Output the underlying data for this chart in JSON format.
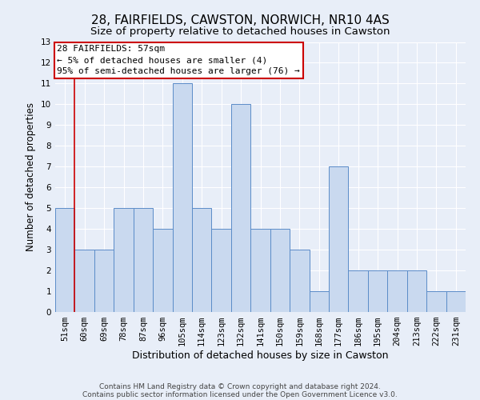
{
  "title1": "28, FAIRFIELDS, CAWSTON, NORWICH, NR10 4AS",
  "title2": "Size of property relative to detached houses in Cawston",
  "xlabel": "Distribution of detached houses by size in Cawston",
  "ylabel": "Number of detached properties",
  "categories": [
    "51sqm",
    "60sqm",
    "69sqm",
    "78sqm",
    "87sqm",
    "96sqm",
    "105sqm",
    "114sqm",
    "123sqm",
    "132sqm",
    "141sqm",
    "150sqm",
    "159sqm",
    "168sqm",
    "177sqm",
    "186sqm",
    "195sqm",
    "204sqm",
    "213sqm",
    "222sqm",
    "231sqm"
  ],
  "values": [
    5,
    3,
    3,
    5,
    5,
    4,
    11,
    5,
    4,
    10,
    4,
    4,
    3,
    1,
    7,
    2,
    2,
    2,
    2,
    1,
    1
  ],
  "bar_color": "#c9d9ef",
  "bar_edge_color": "#5b8cc8",
  "annotation_title": "28 FAIRFIELDS: 57sqm",
  "annotation_line1": "← 5% of detached houses are smaller (4)",
  "annotation_line2": "95% of semi-detached houses are larger (76) →",
  "annotation_box_color": "#ffffff",
  "annotation_box_edge": "#cc0000",
  "vline_x": 0.5,
  "vline_color": "#cc0000",
  "ylim": [
    0,
    13
  ],
  "yticks": [
    0,
    1,
    2,
    3,
    4,
    5,
    6,
    7,
    8,
    9,
    10,
    11,
    12,
    13
  ],
  "footer1": "Contains HM Land Registry data © Crown copyright and database right 2024.",
  "footer2": "Contains public sector information licensed under the Open Government Licence v3.0.",
  "bg_color": "#e8eef8",
  "plot_bg_color": "#e8eef8",
  "grid_color": "#ffffff",
  "title1_fontsize": 11,
  "title2_fontsize": 9.5,
  "xlabel_fontsize": 9,
  "ylabel_fontsize": 8.5,
  "tick_fontsize": 7.5,
  "annotation_fontsize": 8,
  "footer_fontsize": 6.5
}
